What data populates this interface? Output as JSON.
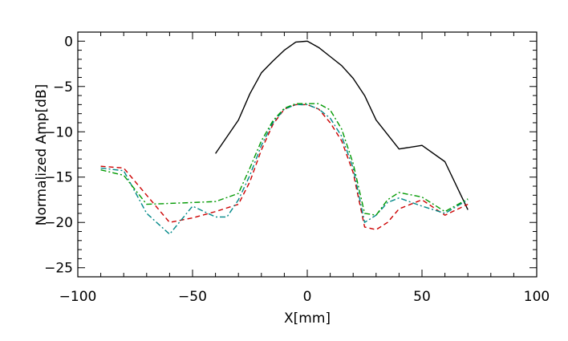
{
  "chart_data": {
    "type": "line",
    "title": "",
    "xlabel": "X[mm]",
    "ylabel": "Normalized Amp[dB]",
    "xlim": [
      -100,
      100
    ],
    "ylim": [
      -26,
      1
    ],
    "xticks": [
      -100,
      -50,
      0,
      50,
      100
    ],
    "xtick_labels": [
      "−100",
      "−50",
      "0",
      "50",
      "100"
    ],
    "yticks": [
      0,
      -5,
      -10,
      -15,
      -20,
      -25
    ],
    "ytick_labels": [
      "0",
      "−5",
      "−10",
      "−15",
      "−20",
      "−25"
    ],
    "grid": false,
    "legend": "none",
    "series": [
      {
        "name": "black-solid",
        "color": "#000000",
        "dash": "solid",
        "x": [
          -40,
          -30,
          -25,
          -20,
          -15,
          -10,
          -5,
          0,
          5,
          10,
          15,
          20,
          25,
          30,
          40,
          50,
          60,
          70
        ],
        "y": [
          -12.4,
          -8.7,
          -5.8,
          -3.5,
          -2.2,
          -1.0,
          -0.1,
          0,
          -0.7,
          -1.7,
          -2.7,
          -4.1,
          -6.0,
          -8.7,
          -11.9,
          -11.5,
          -13.3,
          -18.6
        ]
      },
      {
        "name": "red-dashed",
        "color": "#cc0000",
        "dash": "dashed",
        "x": [
          -90,
          -80,
          -70,
          -60,
          -50,
          -40,
          -30,
          -25,
          -20,
          -15,
          -10,
          -5,
          0,
          5,
          10,
          15,
          20,
          25,
          30,
          35,
          40,
          50,
          60,
          70
        ],
        "y": [
          -13.8,
          -14.0,
          -17.0,
          -20.0,
          -19.5,
          -18.8,
          -18.0,
          -15.5,
          -12.0,
          -9.2,
          -7.5,
          -7.0,
          -7.0,
          -7.5,
          -9.0,
          -11.0,
          -14.5,
          -20.5,
          -20.8,
          -20.0,
          -18.5,
          -17.5,
          -19.2,
          -18.0
        ]
      },
      {
        "name": "teal-dashdot",
        "color": "#008888",
        "dash": "dashdot",
        "x": [
          -90,
          -80,
          -70,
          -60,
          -50,
          -40,
          -35,
          -30,
          -25,
          -20,
          -15,
          -10,
          -5,
          0,
          5,
          10,
          15,
          20,
          25,
          30,
          35,
          40,
          50,
          60,
          70
        ],
        "y": [
          -14.0,
          -14.3,
          -19.0,
          -21.3,
          -18.2,
          -19.4,
          -19.4,
          -17.5,
          -14.8,
          -11.5,
          -9.0,
          -7.5,
          -7.0,
          -7.0,
          -7.5,
          -8.5,
          -10.5,
          -14.0,
          -20.0,
          -19.2,
          -17.8,
          -17.3,
          -18.2,
          -19.0,
          -17.5
        ]
      },
      {
        "name": "green-dashdot",
        "color": "#009900",
        "dash": "dashdot",
        "x": [
          -90,
          -80,
          -70,
          -60,
          -50,
          -40,
          -30,
          -25,
          -20,
          -15,
          -10,
          -5,
          0,
          5,
          10,
          15,
          20,
          25,
          30,
          35,
          40,
          50,
          60,
          70
        ],
        "y": [
          -14.2,
          -14.8,
          -18.0,
          -17.9,
          -17.8,
          -17.7,
          -16.8,
          -14.0,
          -11.0,
          -8.8,
          -7.4,
          -6.9,
          -6.9,
          -6.9,
          -7.6,
          -9.7,
          -13.5,
          -19.0,
          -19.2,
          -17.5,
          -16.7,
          -17.2,
          -18.8,
          -17.4
        ]
      }
    ]
  }
}
